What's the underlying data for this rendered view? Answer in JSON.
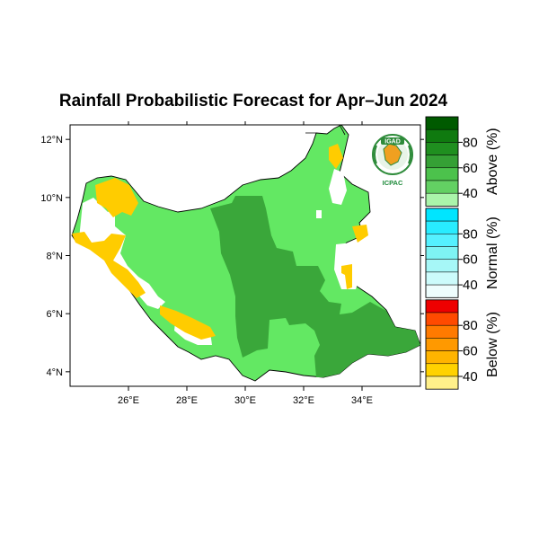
{
  "title": "Rainfall Probabilistic Forecast for Apr–Jun 2024",
  "map": {
    "lon_ticks": [
      "26°E",
      "28°E",
      "30°E",
      "32°E",
      "34°E"
    ],
    "lat_ticks": [
      "12°N",
      "10°N",
      "8°N",
      "6°N",
      "4°N"
    ],
    "lon_range": [
      24,
      36
    ],
    "lat_range": [
      3.5,
      12.5
    ]
  },
  "colorbars": [
    {
      "name": "Above",
      "title": "Above (%)",
      "ticks": [
        "80",
        "60",
        "40"
      ],
      "colors": [
        "#005a00",
        "#0f7a0f",
        "#1f8f1f",
        "#35a035",
        "#4cc24c",
        "#63d063",
        "#aaf4aa"
      ]
    },
    {
      "name": "Normal",
      "title": "Normal (%)",
      "ticks": [
        "80",
        "60",
        "40"
      ],
      "colors": [
        "#00e5ff",
        "#28ecff",
        "#55f1ff",
        "#7ef3f3",
        "#a6f7f7",
        "#ccfbfb",
        "#eefdfd"
      ]
    },
    {
      "name": "Below",
      "title": "Below (%)",
      "ticks": [
        "80",
        "60",
        "40"
      ],
      "colors": [
        "#ee0000",
        "#ff4a00",
        "#ff7a00",
        "#ff9900",
        "#ffb400",
        "#ffd200",
        "#fff08a"
      ]
    }
  ],
  "colors": {
    "above_40": "#63e863",
    "above_60": "#3aa73a",
    "below_40": "#ffcc00",
    "normal_bg": "#ffffff"
  },
  "logo": {
    "top_text": "IGAD",
    "bottom_text": "ICPAC"
  }
}
